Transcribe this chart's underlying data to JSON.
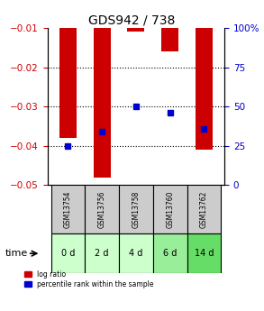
{
  "title": "GDS942 / 738",
  "categories": [
    "GSM13754",
    "GSM13756",
    "GSM13758",
    "GSM13760",
    "GSM13762"
  ],
  "time_labels": [
    "0 d",
    "2 d",
    "4 d",
    "6 d",
    "14 d"
  ],
  "log_ratio": [
    -0.038,
    -0.048,
    -0.011,
    -0.016,
    -0.041
  ],
  "percentile_rank": [
    25,
    34,
    50,
    46,
    36
  ],
  "ylim_left": [
    -0.05,
    -0.01
  ],
  "ylim_right": [
    0,
    100
  ],
  "yticks_left": [
    -0.05,
    -0.04,
    -0.03,
    -0.02,
    -0.01
  ],
  "yticks_right": [
    0,
    25,
    50,
    75,
    100
  ],
  "bar_color": "#cc0000",
  "dot_color": "#0000cc",
  "bar_width": 0.5,
  "grid_color": "#000000",
  "bg_color_gsm": "#cccccc",
  "bg_color_time_light": "#ccffcc",
  "bg_color_time_medium": "#99ee99",
  "time_colors": [
    "#ccffcc",
    "#ccffcc",
    "#ccffcc",
    "#99ee99",
    "#66dd66"
  ],
  "legend_bar_label": "log ratio",
  "legend_dot_label": "percentile rank within the sample",
  "left_axis_color": "#cc0000",
  "right_axis_color": "#0000cc"
}
